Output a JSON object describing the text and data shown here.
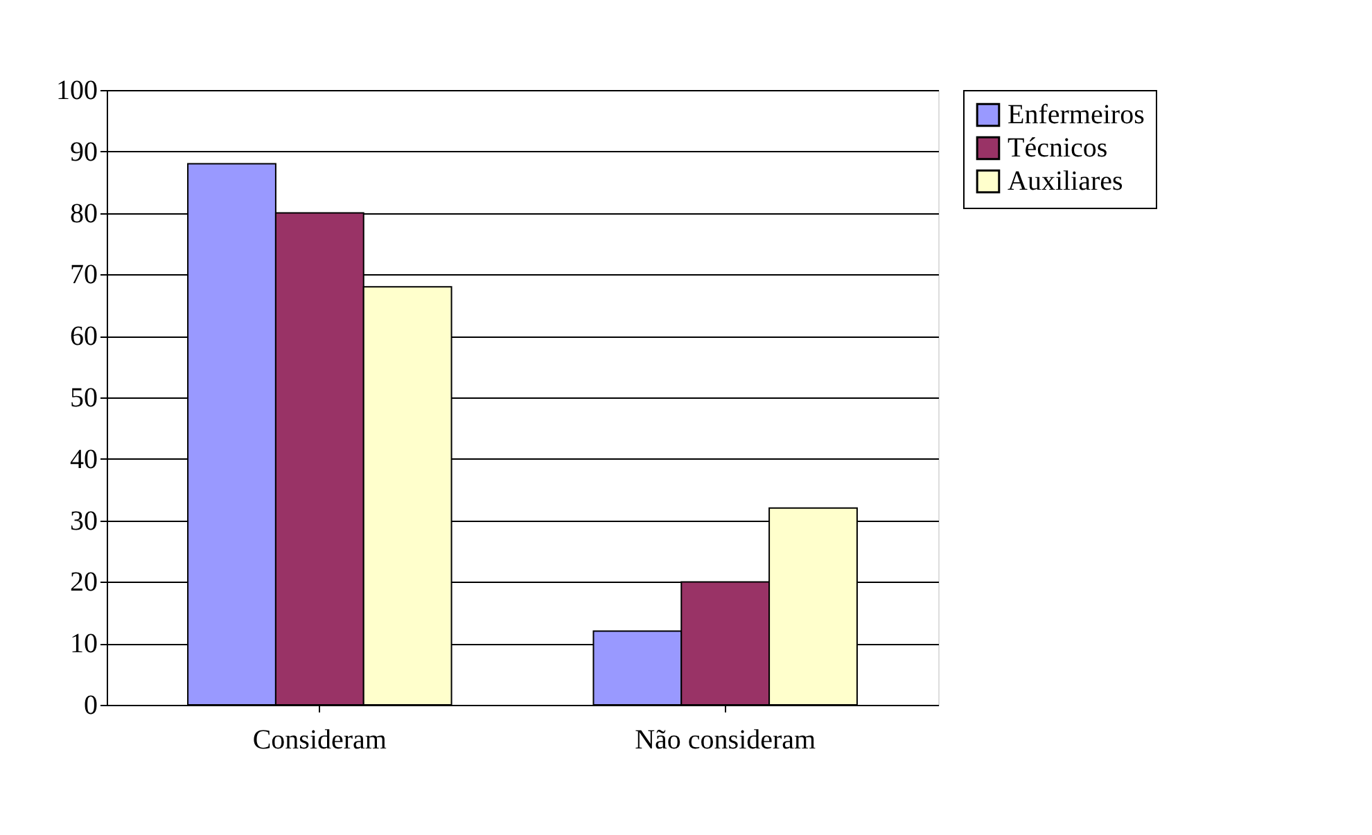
{
  "chart_data": {
    "type": "bar",
    "categories": [
      "Consideram",
      "Não consideram"
    ],
    "series": [
      {
        "name": "Enfermeiros",
        "color": "#9999ff",
        "values": [
          88,
          12
        ]
      },
      {
        "name": "Técnicos",
        "color": "#993366",
        "values": [
          80,
          20
        ]
      },
      {
        "name": "Auxiliares",
        "color": "#ffffcc",
        "values": [
          68,
          32
        ]
      }
    ],
    "ylim": [
      0,
      100
    ],
    "yticks": [
      0,
      10,
      20,
      30,
      40,
      50,
      60,
      70,
      80,
      90,
      100
    ],
    "grid": "y",
    "legend": "right"
  }
}
